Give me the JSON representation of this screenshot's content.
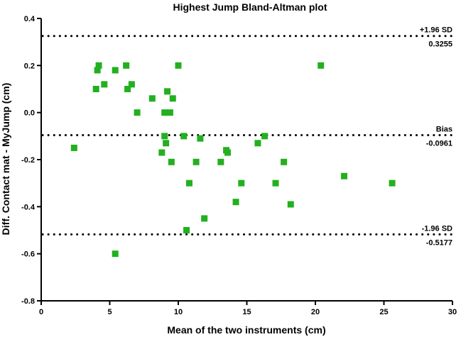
{
  "chart_data": {
    "type": "scatter",
    "title": "Highest Jump Bland-Altman plot",
    "xlabel": "Mean of the two instruments (cm)",
    "ylabel": "Diff. Contact mat - MyJump (cm)",
    "xlim": [
      0,
      30
    ],
    "ylim": [
      -0.8,
      0.4
    ],
    "x_ticks": [
      "0",
      "5",
      "10",
      "15",
      "20",
      "25",
      "30"
    ],
    "y_ticks": [
      "-0.8",
      "-0.6",
      "-0.4",
      "-0.2",
      "0.0",
      "0.2",
      "0.4"
    ],
    "grid": false,
    "marker_color": "#22b01f",
    "reference_lines": [
      {
        "label": "+1.96 SD",
        "value_text": "0.3255",
        "y": 0.3255
      },
      {
        "label": "Bias",
        "value_text": "-0.0961",
        "y": -0.0961
      },
      {
        "label": "-1.96 SD",
        "value_text": "-0.5177",
        "y": -0.5177
      }
    ],
    "points": [
      {
        "x": 2.4,
        "y": -0.15
      },
      {
        "x": 4.0,
        "y": 0.1
      },
      {
        "x": 4.1,
        "y": 0.18
      },
      {
        "x": 4.2,
        "y": 0.2
      },
      {
        "x": 4.6,
        "y": 0.12
      },
      {
        "x": 5.4,
        "y": 0.18
      },
      {
        "x": 6.2,
        "y": 0.2
      },
      {
        "x": 6.3,
        "y": 0.1
      },
      {
        "x": 6.6,
        "y": 0.12
      },
      {
        "x": 7.0,
        "y": 0.0
      },
      {
        "x": 8.1,
        "y": 0.06
      },
      {
        "x": 8.8,
        "y": -0.17
      },
      {
        "x": 9.0,
        "y": 0.0
      },
      {
        "x": 9.0,
        "y": -0.1
      },
      {
        "x": 9.1,
        "y": -0.13
      },
      {
        "x": 9.2,
        "y": 0.09
      },
      {
        "x": 9.4,
        "y": 0.0
      },
      {
        "x": 9.5,
        "y": -0.21
      },
      {
        "x": 9.6,
        "y": 0.06
      },
      {
        "x": 10.0,
        "y": 0.2
      },
      {
        "x": 10.4,
        "y": -0.1
      },
      {
        "x": 10.8,
        "y": -0.3
      },
      {
        "x": 11.3,
        "y": -0.21
      },
      {
        "x": 11.6,
        "y": -0.11
      },
      {
        "x": 11.9,
        "y": -0.45
      },
      {
        "x": 10.6,
        "y": -0.5
      },
      {
        "x": 13.1,
        "y": -0.21
      },
      {
        "x": 13.5,
        "y": -0.16
      },
      {
        "x": 13.6,
        "y": -0.17
      },
      {
        "x": 14.2,
        "y": -0.38
      },
      {
        "x": 14.6,
        "y": -0.3
      },
      {
        "x": 15.8,
        "y": -0.13
      },
      {
        "x": 16.3,
        "y": -0.1
      },
      {
        "x": 17.1,
        "y": -0.3
      },
      {
        "x": 17.7,
        "y": -0.21
      },
      {
        "x": 18.2,
        "y": -0.39
      },
      {
        "x": 20.4,
        "y": 0.2
      },
      {
        "x": 22.1,
        "y": -0.27
      },
      {
        "x": 25.6,
        "y": -0.3
      },
      {
        "x": 5.4,
        "y": -0.6
      }
    ]
  }
}
